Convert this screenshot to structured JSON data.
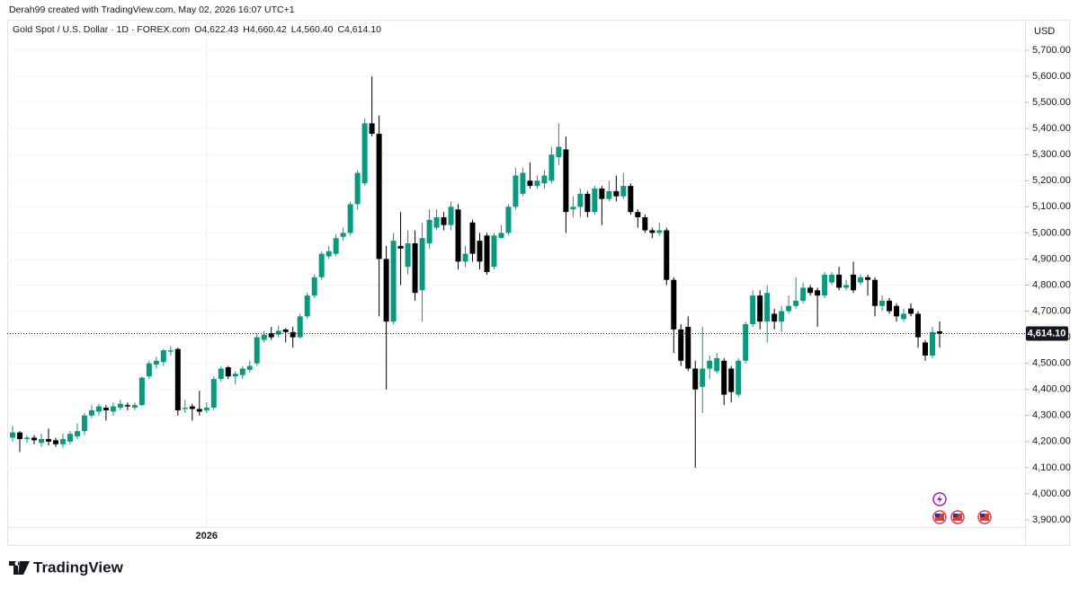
{
  "header": "Derah99 created with TradingView.com, May 02, 2026 16:07 UTC+1",
  "branding": "TradingView",
  "chart_data": {
    "type": "candlestick",
    "title": "Gold Spot / U.S. Dollar · 1D · FOREX.com",
    "legend_values": [
      "O4,622.43",
      "H4,660.42",
      "L4,560.40",
      "C4,614.10"
    ],
    "y_axis_label": "USD",
    "last_price_label": "4,614.10",
    "up_color": "#089981",
    "down_color": "#000000",
    "grid": true,
    "categories": [
      null,
      null,
      null,
      null,
      null,
      null,
      null,
      null,
      null,
      null,
      null,
      null,
      null,
      null,
      null,
      null,
      null,
      null,
      null,
      null,
      null,
      null,
      null,
      null,
      null,
      null,
      null,
      "2026",
      null,
      null,
      null,
      null,
      null,
      null,
      null,
      null,
      null,
      null,
      null,
      null,
      null,
      null,
      null,
      null,
      null,
      null,
      null,
      null,
      null,
      null,
      null,
      null,
      null,
      null,
      null,
      null,
      null,
      null,
      null,
      null,
      null,
      null,
      null,
      null,
      null,
      null,
      null,
      null,
      null,
      null,
      null,
      null,
      null,
      null,
      null,
      null,
      null,
      null,
      null,
      null,
      null,
      null,
      null,
      null,
      null,
      null,
      null,
      null,
      null,
      null,
      null,
      null,
      null,
      null,
      null,
      null,
      null,
      null,
      null,
      null,
      null,
      null,
      null,
      null,
      null,
      null,
      null,
      null,
      null,
      null,
      null,
      null,
      null,
      null,
      null,
      null,
      null,
      null,
      null,
      null,
      null,
      null,
      null,
      null,
      null,
      null,
      null,
      null,
      null,
      null
    ],
    "open": [
      4215,
      4235,
      4210,
      4215,
      4195,
      4210,
      4205,
      4190,
      4200,
      4220,
      4240,
      4300,
      4315,
      4330,
      4315,
      4330,
      4340,
      4330,
      4340,
      4450,
      4495,
      4505,
      4545,
      4555,
      4325,
      4335,
      4325,
      4320,
      4330,
      4440,
      4485,
      4450,
      4455,
      4475,
      4500,
      4590,
      4615,
      4610,
      4630,
      4620,
      4600,
      4680,
      4760,
      4830,
      4910,
      4920,
      4985,
      5000,
      5110,
      5190,
      5420,
      5380,
      4900,
      4660,
      4950,
      4870,
      4960,
      4780,
      4960,
      5020,
      5060,
      5030,
      5090,
      4890,
      5040,
      4970,
      4990,
      4870,
      4980,
      5000,
      5100,
      5150,
      5200,
      5180,
      5190,
      5200,
      5290,
      5320,
      5090,
      5100,
      5150,
      5080,
      5170,
      5130,
      5160,
      5140,
      5180,
      5080,
      5060,
      5010,
      5000,
      5010,
      4820,
      4630,
      4640,
      4480,
      4410,
      4480,
      4470,
      4510,
      4480,
      4380,
      4510,
      4650,
      4760,
      4660,
      4690,
      4660,
      4700,
      4720,
      4740,
      4790,
      4780,
      4760,
      4810,
      4840,
      4790,
      4840,
      4810,
      4830,
      4820,
      4720,
      4740,
      4720,
      4670,
      4710,
      4690,
      4580,
      4530,
      4622.43
    ],
    "high": [
      4260,
      4240,
      4225,
      4225,
      4230,
      4250,
      4215,
      4230,
      4240,
      4270,
      4310,
      4340,
      4345,
      4340,
      4350,
      4360,
      4350,
      4350,
      4450,
      4510,
      4525,
      4555,
      4565,
      4560,
      4360,
      4345,
      4395,
      4350,
      4450,
      4490,
      4490,
      4470,
      4490,
      4510,
      4615,
      4625,
      4640,
      4645,
      4635,
      4640,
      4690,
      4770,
      4840,
      4930,
      4950,
      4995,
      5020,
      5120,
      5240,
      5440,
      5600,
      5450,
      4950,
      5000,
      5080,
      5010,
      5010,
      5040,
      5090,
      5090,
      5080,
      5120,
      5110,
      4950,
      5050,
      5000,
      5000,
      5000,
      5030,
      5110,
      5250,
      5250,
      5270,
      5220,
      5240,
      5330,
      5420,
      5370,
      5140,
      5170,
      5160,
      5180,
      5180,
      5200,
      5220,
      5230,
      5190,
      5090,
      5070,
      5020,
      5040,
      5020,
      4830,
      4650,
      4680,
      4510,
      4640,
      4530,
      4540,
      4520,
      4490,
      4520,
      4660,
      4780,
      4780,
      4800,
      4710,
      4720,
      4760,
      4830,
      4810,
      4800,
      4790,
      4850,
      4850,
      4870,
      4820,
      4890,
      4840,
      4840,
      4830,
      4760,
      4750,
      4730,
      4710,
      4730,
      4700,
      4590,
      4640,
      4660.42
    ],
    "low": [
      4200,
      4160,
      4195,
      4190,
      4180,
      4185,
      4180,
      4175,
      4190,
      4210,
      4225,
      4290,
      4300,
      4280,
      4300,
      4320,
      4320,
      4320,
      4335,
      4440,
      4480,
      4490,
      4530,
      4300,
      4310,
      4280,
      4300,
      4310,
      4320,
      4430,
      4440,
      4420,
      4440,
      4465,
      4490,
      4580,
      4590,
      4600,
      4580,
      4560,
      4595,
      4670,
      4750,
      4820,
      4900,
      4910,
      4970,
      4990,
      5090,
      5180,
      5370,
      4680,
      4400,
      4650,
      4800,
      4840,
      4740,
      4660,
      4940,
      5010,
      5010,
      5010,
      4860,
      4870,
      4890,
      4860,
      4840,
      4860,
      4980,
      4990,
      5090,
      5140,
      5170,
      5170,
      5170,
      5190,
      5260,
      5000,
      5060,
      5060,
      5060,
      5070,
      5030,
      5120,
      5120,
      5130,
      5070,
      5020,
      5000,
      4980,
      4990,
      4800,
      4540,
      4490,
      4470,
      4100,
      4310,
      4440,
      4460,
      4340,
      4350,
      4370,
      4500,
      4640,
      4630,
      4580,
      4630,
      4620,
      4690,
      4710,
      4730,
      4760,
      4640,
      4750,
      4800,
      4780,
      4780,
      4770,
      4800,
      4760,
      4680,
      4700,
      4690,
      4660,
      4660,
      4680,
      4560,
      4510,
      4520,
      4560.4
    ],
    "close": [
      4235,
      4210,
      4215,
      4205,
      4210,
      4200,
      4190,
      4210,
      4230,
      4240,
      4300,
      4320,
      4335,
      4320,
      4335,
      4345,
      4335,
      4340,
      4445,
      4500,
      4510,
      4550,
      4550,
      4320,
      4330,
      4325,
      4315,
      4330,
      4440,
      4480,
      4450,
      4460,
      4480,
      4490,
      4600,
      4610,
      4600,
      4625,
      4620,
      4600,
      4680,
      4760,
      4830,
      4920,
      4930,
      4980,
      5000,
      5110,
      5230,
      5420,
      5380,
      4900,
      4660,
      4970,
      4940,
      4960,
      4770,
      4980,
      5050,
      5060,
      5030,
      5100,
      4890,
      4920,
      4920,
      4890,
      4850,
      4990,
      5000,
      5100,
      5220,
      5230,
      5180,
      5200,
      5220,
      5300,
      5330,
      5080,
      5100,
      5150,
      5080,
      5170,
      5130,
      5160,
      5140,
      5180,
      5080,
      5060,
      5010,
      5000,
      5010,
      4820,
      4630,
      4510,
      4480,
      4400,
      4480,
      4510,
      4520,
      4380,
      4390,
      4510,
      4650,
      4760,
      4660,
      4770,
      4660,
      4700,
      4720,
      4740,
      4790,
      4770,
      4760,
      4840,
      4840,
      4790,
      4800,
      4780,
      4830,
      4820,
      4720,
      4740,
      4700,
      4680,
      4690,
      4690,
      4600,
      4530,
      4620,
      4614.1
    ],
    "ylim": [
      3872.5,
      5817
    ],
    "yticks": [
      {
        "value": 3900,
        "label": "3,900.00"
      },
      {
        "value": 4000,
        "label": "4,000.00"
      },
      {
        "value": 4100,
        "label": "4,100.00"
      },
      {
        "value": 4200,
        "label": "4,200.00"
      },
      {
        "value": 4300,
        "label": "4,300.00"
      },
      {
        "value": 4400,
        "label": "4,400.00"
      },
      {
        "value": 4500,
        "label": "4,500.00"
      },
      {
        "value": 4600,
        "label": "4,600.00"
      },
      {
        "value": 4700,
        "label": "4,700.00"
      },
      {
        "value": 4800,
        "label": "4,800.00"
      },
      {
        "value": 4900,
        "label": "4,900.00"
      },
      {
        "value": 5000,
        "label": "5,000.00"
      },
      {
        "value": 5100,
        "label": "5,100.00"
      },
      {
        "value": 5200,
        "label": "5,200.00"
      },
      {
        "value": 5300,
        "label": "5,300.00"
      },
      {
        "value": 5400,
        "label": "5,400.00"
      },
      {
        "value": 5500,
        "label": "5,500.00"
      },
      {
        "value": 5600,
        "label": "5,600.00"
      },
      {
        "value": 5700,
        "label": "5,700.00"
      }
    ]
  }
}
